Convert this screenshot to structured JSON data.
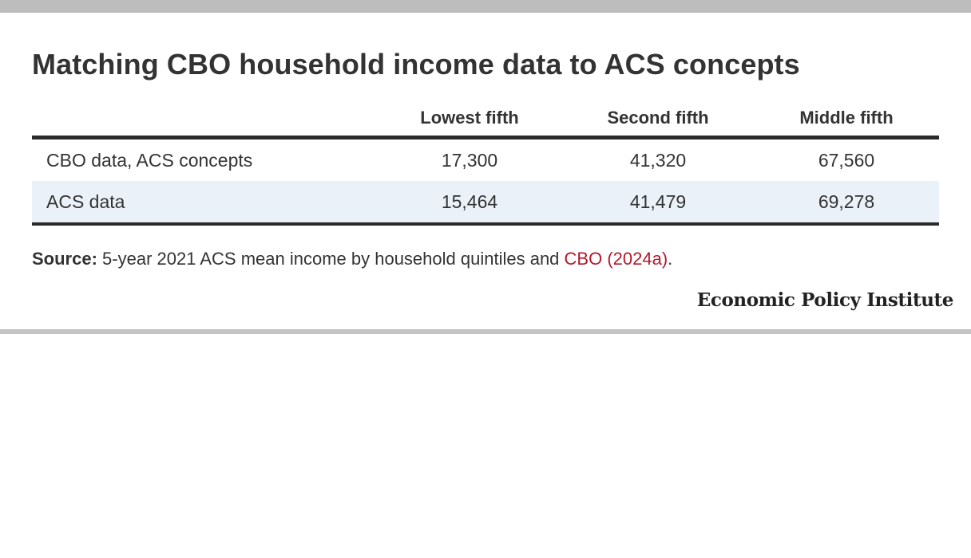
{
  "chart_data": {
    "type": "table",
    "title": "Matching CBO household income data to ACS concepts",
    "columns": [
      "",
      "Lowest fifth",
      "Second fifth",
      "Middle fifth"
    ],
    "rows": [
      {
        "label": "CBO data, ACS concepts",
        "values": [
          "17,300",
          "41,320",
          "67,560"
        ]
      },
      {
        "label": "ACS data",
        "values": [
          "15,464",
          "41,479",
          "69,278"
        ]
      }
    ]
  },
  "source": {
    "label": "Source:",
    "text": "5-year 2021 ACS mean income by household quintiles and",
    "link_text": "CBO (2024a)",
    "suffix": "."
  },
  "branding": {
    "publisher": "Economic Policy Institute"
  },
  "colors": {
    "link": "#b3192d",
    "alt_row": "#eaf1f8",
    "rule": "#2b2b2b"
  }
}
